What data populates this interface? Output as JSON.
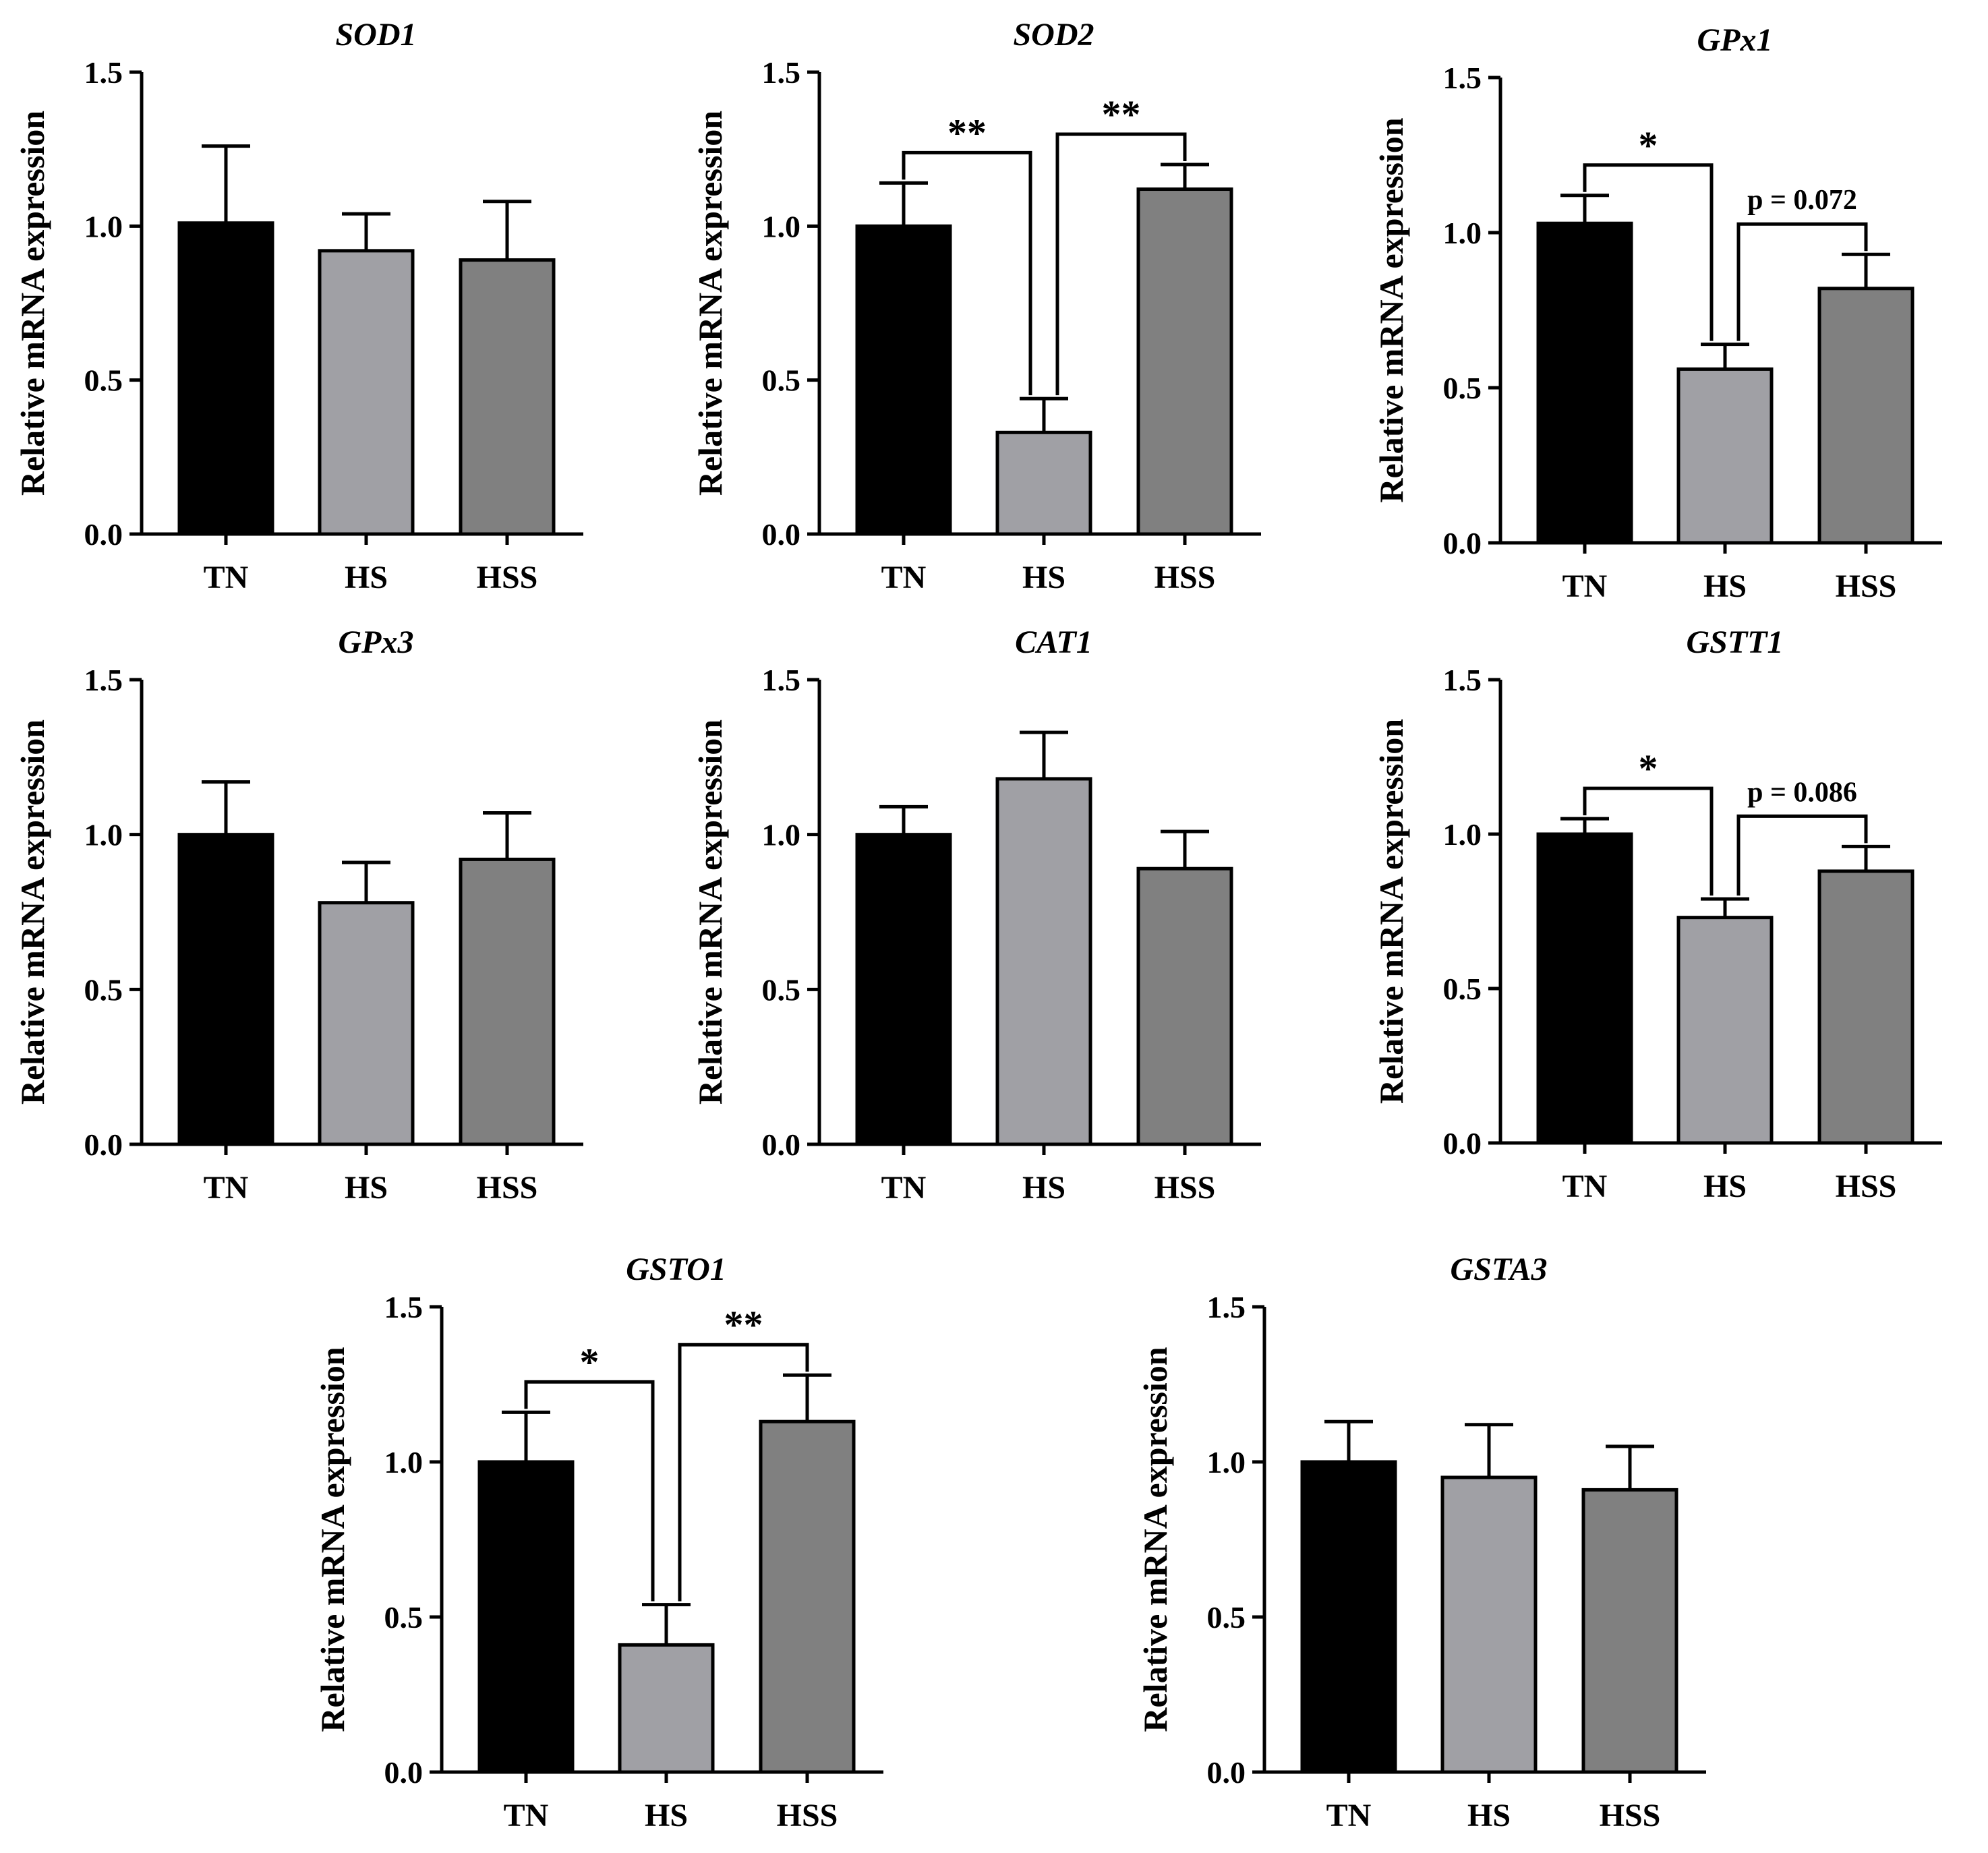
{
  "chart_data": [
    {
      "type": "bar",
      "title": "SOD1",
      "ylabel": "Relative mRNA expression",
      "categories": [
        "TN",
        "HS",
        "HSS"
      ],
      "values": [
        1.01,
        0.92,
        0.89
      ],
      "errors": [
        0.25,
        0.12,
        0.19
      ],
      "ylim": [
        0,
        1.5
      ],
      "yticks": [
        "0.0",
        "0.5",
        "1.0",
        "1.5"
      ],
      "colors": [
        "#000000",
        "#a0a0a5",
        "#808080"
      ],
      "comparisons": []
    },
    {
      "type": "bar",
      "title": "SOD2",
      "ylabel": "Relative mRNA expression",
      "categories": [
        "TN",
        "HS",
        "HSS"
      ],
      "values": [
        1.0,
        0.33,
        1.12
      ],
      "errors": [
        0.14,
        0.11,
        0.08
      ],
      "ylim": [
        0,
        1.5
      ],
      "yticks": [
        "0.0",
        "0.5",
        "1.0",
        "1.5"
      ],
      "colors": [
        "#000000",
        "#a0a0a5",
        "#808080"
      ],
      "comparisons": [
        {
          "from": 0,
          "to": 1,
          "label": "**",
          "kind": "stars"
        },
        {
          "from": 1,
          "to": 2,
          "label": "**",
          "kind": "stars"
        }
      ]
    },
    {
      "type": "bar",
      "title": "GPx1",
      "ylabel": "Relative mRNA expression",
      "categories": [
        "TN",
        "HS",
        "HSS"
      ],
      "values": [
        1.03,
        0.56,
        0.82
      ],
      "errors": [
        0.09,
        0.08,
        0.11
      ],
      "ylim": [
        0,
        1.5
      ],
      "yticks": [
        "0.0",
        "0.5",
        "1.0",
        "1.5"
      ],
      "colors": [
        "#000000",
        "#a0a0a5",
        "#808080"
      ],
      "comparisons": [
        {
          "from": 0,
          "to": 1,
          "label": "*",
          "kind": "stars"
        },
        {
          "from": 1,
          "to": 2,
          "label": "p = 0.072",
          "kind": "p"
        }
      ]
    },
    {
      "type": "bar",
      "title": "GPx3",
      "ylabel": "Relative mRNA expression",
      "categories": [
        "TN",
        "HS",
        "HSS"
      ],
      "values": [
        1.0,
        0.78,
        0.92
      ],
      "errors": [
        0.17,
        0.13,
        0.15
      ],
      "ylim": [
        0,
        1.5
      ],
      "yticks": [
        "0.0",
        "0.5",
        "1.0",
        "1.5"
      ],
      "colors": [
        "#000000",
        "#a0a0a5",
        "#808080"
      ],
      "comparisons": []
    },
    {
      "type": "bar",
      "title": "CAT1",
      "ylabel": "Relative mRNA expression",
      "categories": [
        "TN",
        "HS",
        "HSS"
      ],
      "values": [
        1.0,
        1.18,
        0.89
      ],
      "errors": [
        0.09,
        0.15,
        0.12
      ],
      "ylim": [
        0,
        1.5
      ],
      "yticks": [
        "0.0",
        "0.5",
        "1.0",
        "1.5"
      ],
      "colors": [
        "#000000",
        "#a0a0a5",
        "#808080"
      ],
      "comparisons": []
    },
    {
      "type": "bar",
      "title": "GSTT1",
      "ylabel": "Relative mRNA expression",
      "categories": [
        "TN",
        "HS",
        "HSS"
      ],
      "values": [
        1.0,
        0.73,
        0.88
      ],
      "errors": [
        0.05,
        0.06,
        0.08
      ],
      "ylim": [
        0,
        1.5
      ],
      "yticks": [
        "0.0",
        "0.5",
        "1.0",
        "1.5"
      ],
      "colors": [
        "#000000",
        "#a0a0a5",
        "#808080"
      ],
      "comparisons": [
        {
          "from": 0,
          "to": 1,
          "label": "*",
          "kind": "stars"
        },
        {
          "from": 1,
          "to": 2,
          "label": "p = 0.086",
          "kind": "p"
        }
      ]
    },
    {
      "type": "bar",
      "title": "GSTO1",
      "ylabel": "Relative mRNA expression",
      "categories": [
        "TN",
        "HS",
        "HSS"
      ],
      "values": [
        1.0,
        0.41,
        1.13
      ],
      "errors": [
        0.16,
        0.13,
        0.15
      ],
      "ylim": [
        0,
        1.5
      ],
      "yticks": [
        "0.0",
        "0.5",
        "1.0",
        "1.5"
      ],
      "colors": [
        "#000000",
        "#a0a0a5",
        "#808080"
      ],
      "comparisons": [
        {
          "from": 0,
          "to": 1,
          "label": "*",
          "kind": "stars"
        },
        {
          "from": 1,
          "to": 2,
          "label": "**",
          "kind": "stars"
        }
      ]
    },
    {
      "type": "bar",
      "title": "GSTA3",
      "ylabel": "Relative mRNA expression",
      "categories": [
        "TN",
        "HS",
        "HSS"
      ],
      "values": [
        1.0,
        0.95,
        0.91
      ],
      "errors": [
        0.13,
        0.17,
        0.14
      ],
      "ylim": [
        0,
        1.5
      ],
      "yticks": [
        "0.0",
        "0.5",
        "1.0",
        "1.5"
      ],
      "colors": [
        "#000000",
        "#a0a0a5",
        "#808080"
      ],
      "comparisons": []
    }
  ]
}
